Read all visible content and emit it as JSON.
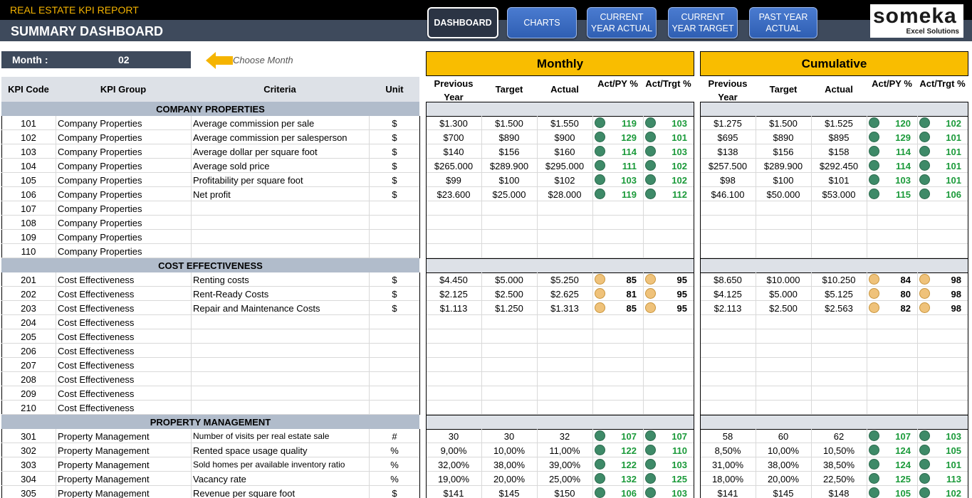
{
  "header": {
    "report_title": "REAL ESTATE KPI REPORT",
    "dashboard_title": "SUMMARY DASHBOARD",
    "nav": [
      {
        "label": "DASHBOARD",
        "active": true
      },
      {
        "label": "CHARTS",
        "active": false
      },
      {
        "label": "CURRENT YEAR ACTUAL",
        "active": false
      },
      {
        "label": "CURRENT YEAR TARGET",
        "active": false
      },
      {
        "label": "PAST YEAR ACTUAL",
        "active": false
      }
    ],
    "logo": {
      "main": "someka",
      "sub": "Excel Solutions"
    }
  },
  "month_selector": {
    "label": "Month :",
    "value": "02",
    "hint": "Choose Month"
  },
  "left_headers": {
    "code": "KPI Code",
    "group": "KPI Group",
    "criteria": "Criteria",
    "unit": "Unit"
  },
  "panels": {
    "monthly": "Monthly",
    "cumulative": "Cumulative",
    "headers": {
      "previous": "Previous Year",
      "target": "Target",
      "actual": "Actual",
      "act_py": "Act/PY %",
      "act_trgt": "Act/Trgt %"
    }
  },
  "colors": {
    "accent": "#f9bd00",
    "header_bg": "#3e4a5c",
    "band": "#b1bccb",
    "green_text": "#1b9a3a",
    "good": "#3e8a68",
    "warn": "#efc27a"
  },
  "sections": [
    {
      "title": "COMPANY PROPERTIES",
      "rows": [
        {
          "code": "101",
          "group": "Company Properties",
          "criteria": "Average commission per sale",
          "unit": "$",
          "m": {
            "prev": "$1.300",
            "target": "$1.500",
            "actual": "$1.550",
            "py": "119",
            "tg": "103",
            "py_s": "green",
            "tg_s": "green"
          },
          "c": {
            "prev": "$1.275",
            "target": "$1.500",
            "actual": "$1.525",
            "py": "120",
            "tg": "102",
            "py_s": "green",
            "tg_s": "green"
          }
        },
        {
          "code": "102",
          "group": "Company Properties",
          "criteria": "Average commission per salesperson",
          "unit": "$",
          "m": {
            "prev": "$700",
            "target": "$890",
            "actual": "$900",
            "py": "129",
            "tg": "101",
            "py_s": "green",
            "tg_s": "green"
          },
          "c": {
            "prev": "$695",
            "target": "$890",
            "actual": "$895",
            "py": "129",
            "tg": "101",
            "py_s": "green",
            "tg_s": "green"
          }
        },
        {
          "code": "103",
          "group": "Company Properties",
          "criteria": "Average dollar per square foot",
          "unit": "$",
          "m": {
            "prev": "$140",
            "target": "$156",
            "actual": "$160",
            "py": "114",
            "tg": "103",
            "py_s": "green",
            "tg_s": "green"
          },
          "c": {
            "prev": "$138",
            "target": "$156",
            "actual": "$158",
            "py": "114",
            "tg": "101",
            "py_s": "green",
            "tg_s": "green"
          }
        },
        {
          "code": "104",
          "group": "Company Properties",
          "criteria": "Average sold price",
          "unit": "$",
          "m": {
            "prev": "$265.000",
            "target": "$289.900",
            "actual": "$295.000",
            "py": "111",
            "tg": "102",
            "py_s": "green",
            "tg_s": "green"
          },
          "c": {
            "prev": "$257.500",
            "target": "$289.900",
            "actual": "$292.450",
            "py": "114",
            "tg": "101",
            "py_s": "green",
            "tg_s": "green"
          }
        },
        {
          "code": "105",
          "group": "Company Properties",
          "criteria": "Profitability per square foot",
          "unit": "$",
          "m": {
            "prev": "$99",
            "target": "$100",
            "actual": "$102",
            "py": "103",
            "tg": "102",
            "py_s": "green",
            "tg_s": "green"
          },
          "c": {
            "prev": "$98",
            "target": "$100",
            "actual": "$101",
            "py": "103",
            "tg": "101",
            "py_s": "green",
            "tg_s": "green"
          }
        },
        {
          "code": "106",
          "group": "Company Properties",
          "criteria": "Net profit",
          "unit": "$",
          "m": {
            "prev": "$23.600",
            "target": "$25.000",
            "actual": "$28.000",
            "py": "119",
            "tg": "112",
            "py_s": "green",
            "tg_s": "green"
          },
          "c": {
            "prev": "$46.100",
            "target": "$50.000",
            "actual": "$53.000",
            "py": "115",
            "tg": "106",
            "py_s": "green",
            "tg_s": "green"
          }
        },
        {
          "code": "107",
          "group": "Company Properties",
          "criteria": "",
          "unit": ""
        },
        {
          "code": "108",
          "group": "Company Properties",
          "criteria": "",
          "unit": ""
        },
        {
          "code": "109",
          "group": "Company Properties",
          "criteria": "",
          "unit": ""
        },
        {
          "code": "110",
          "group": "Company Properties",
          "criteria": "",
          "unit": ""
        }
      ]
    },
    {
      "title": "COST EFFECTIVENESS",
      "rows": [
        {
          "code": "201",
          "group": "Cost Effectiveness",
          "criteria": "Renting costs",
          "unit": "$",
          "m": {
            "prev": "$4.450",
            "target": "$5.000",
            "actual": "$5.250",
            "py": "85",
            "tg": "95",
            "py_s": "yellow",
            "tg_s": "yellow"
          },
          "c": {
            "prev": "$8.650",
            "target": "$10.000",
            "actual": "$10.250",
            "py": "84",
            "tg": "98",
            "py_s": "yellow",
            "tg_s": "yellow"
          }
        },
        {
          "code": "202",
          "group": "Cost Effectiveness",
          "criteria": "Rent-Ready Costs",
          "unit": "$",
          "m": {
            "prev": "$2.125",
            "target": "$2.500",
            "actual": "$2.625",
            "py": "81",
            "tg": "95",
            "py_s": "yellow",
            "tg_s": "yellow"
          },
          "c": {
            "prev": "$4.125",
            "target": "$5.000",
            "actual": "$5.125",
            "py": "80",
            "tg": "98",
            "py_s": "yellow",
            "tg_s": "yellow"
          }
        },
        {
          "code": "203",
          "group": "Cost Effectiveness",
          "criteria": "Repair and Maintenance Costs",
          "unit": "$",
          "m": {
            "prev": "$1.113",
            "target": "$1.250",
            "actual": "$1.313",
            "py": "85",
            "tg": "95",
            "py_s": "yellow",
            "tg_s": "yellow"
          },
          "c": {
            "prev": "$2.113",
            "target": "$2.500",
            "actual": "$2.563",
            "py": "82",
            "tg": "98",
            "py_s": "yellow",
            "tg_s": "yellow"
          }
        },
        {
          "code": "204",
          "group": "Cost Effectiveness",
          "criteria": "",
          "unit": ""
        },
        {
          "code": "205",
          "group": "Cost Effectiveness",
          "criteria": "",
          "unit": ""
        },
        {
          "code": "206",
          "group": "Cost Effectiveness",
          "criteria": "",
          "unit": ""
        },
        {
          "code": "207",
          "group": "Cost Effectiveness",
          "criteria": "",
          "unit": ""
        },
        {
          "code": "208",
          "group": "Cost Effectiveness",
          "criteria": "",
          "unit": ""
        },
        {
          "code": "209",
          "group": "Cost Effectiveness",
          "criteria": "",
          "unit": ""
        },
        {
          "code": "210",
          "group": "Cost Effectiveness",
          "criteria": "",
          "unit": ""
        }
      ]
    },
    {
      "title": "PROPERTY MANAGEMENT",
      "rows": [
        {
          "code": "301",
          "group": "Property Management",
          "criteria": "Number of visits per real estate sale",
          "unit": "#",
          "m": {
            "prev": "30",
            "target": "30",
            "actual": "32",
            "py": "107",
            "tg": "107",
            "py_s": "green",
            "tg_s": "green"
          },
          "c": {
            "prev": "58",
            "target": "60",
            "actual": "62",
            "py": "107",
            "tg": "103",
            "py_s": "green",
            "tg_s": "green"
          }
        },
        {
          "code": "302",
          "group": "Property Management",
          "criteria": "Rented space usage quality",
          "unit": "%",
          "m": {
            "prev": "9,00%",
            "target": "10,00%",
            "actual": "11,00%",
            "py": "122",
            "tg": "110",
            "py_s": "green",
            "tg_s": "green"
          },
          "c": {
            "prev": "8,50%",
            "target": "10,00%",
            "actual": "10,50%",
            "py": "124",
            "tg": "105",
            "py_s": "green",
            "tg_s": "green"
          }
        },
        {
          "code": "303",
          "group": "Property Management",
          "criteria": "Sold homes per available inventory ratio",
          "unit": "%",
          "m": {
            "prev": "32,00%",
            "target": "38,00%",
            "actual": "39,00%",
            "py": "122",
            "tg": "103",
            "py_s": "green",
            "tg_s": "green"
          },
          "c": {
            "prev": "31,00%",
            "target": "38,00%",
            "actual": "38,50%",
            "py": "124",
            "tg": "101",
            "py_s": "green",
            "tg_s": "green"
          }
        },
        {
          "code": "304",
          "group": "Property Management",
          "criteria": "Vacancy rate",
          "unit": "%",
          "m": {
            "prev": "19,00%",
            "target": "20,00%",
            "actual": "25,00%",
            "py": "132",
            "tg": "125",
            "py_s": "green",
            "tg_s": "green"
          },
          "c": {
            "prev": "18,00%",
            "target": "20,00%",
            "actual": "22,50%",
            "py": "125",
            "tg": "113",
            "py_s": "green",
            "tg_s": "green"
          }
        },
        {
          "code": "305",
          "group": "Property Management",
          "criteria": "Revenue per square foot",
          "unit": "$",
          "m": {
            "prev": "$141",
            "target": "$145",
            "actual": "$150",
            "py": "106",
            "tg": "103",
            "py_s": "green",
            "tg_s": "green"
          },
          "c": {
            "prev": "$141",
            "target": "$145",
            "actual": "$148",
            "py": "105",
            "tg": "102",
            "py_s": "green",
            "tg_s": "green"
          }
        }
      ]
    }
  ]
}
